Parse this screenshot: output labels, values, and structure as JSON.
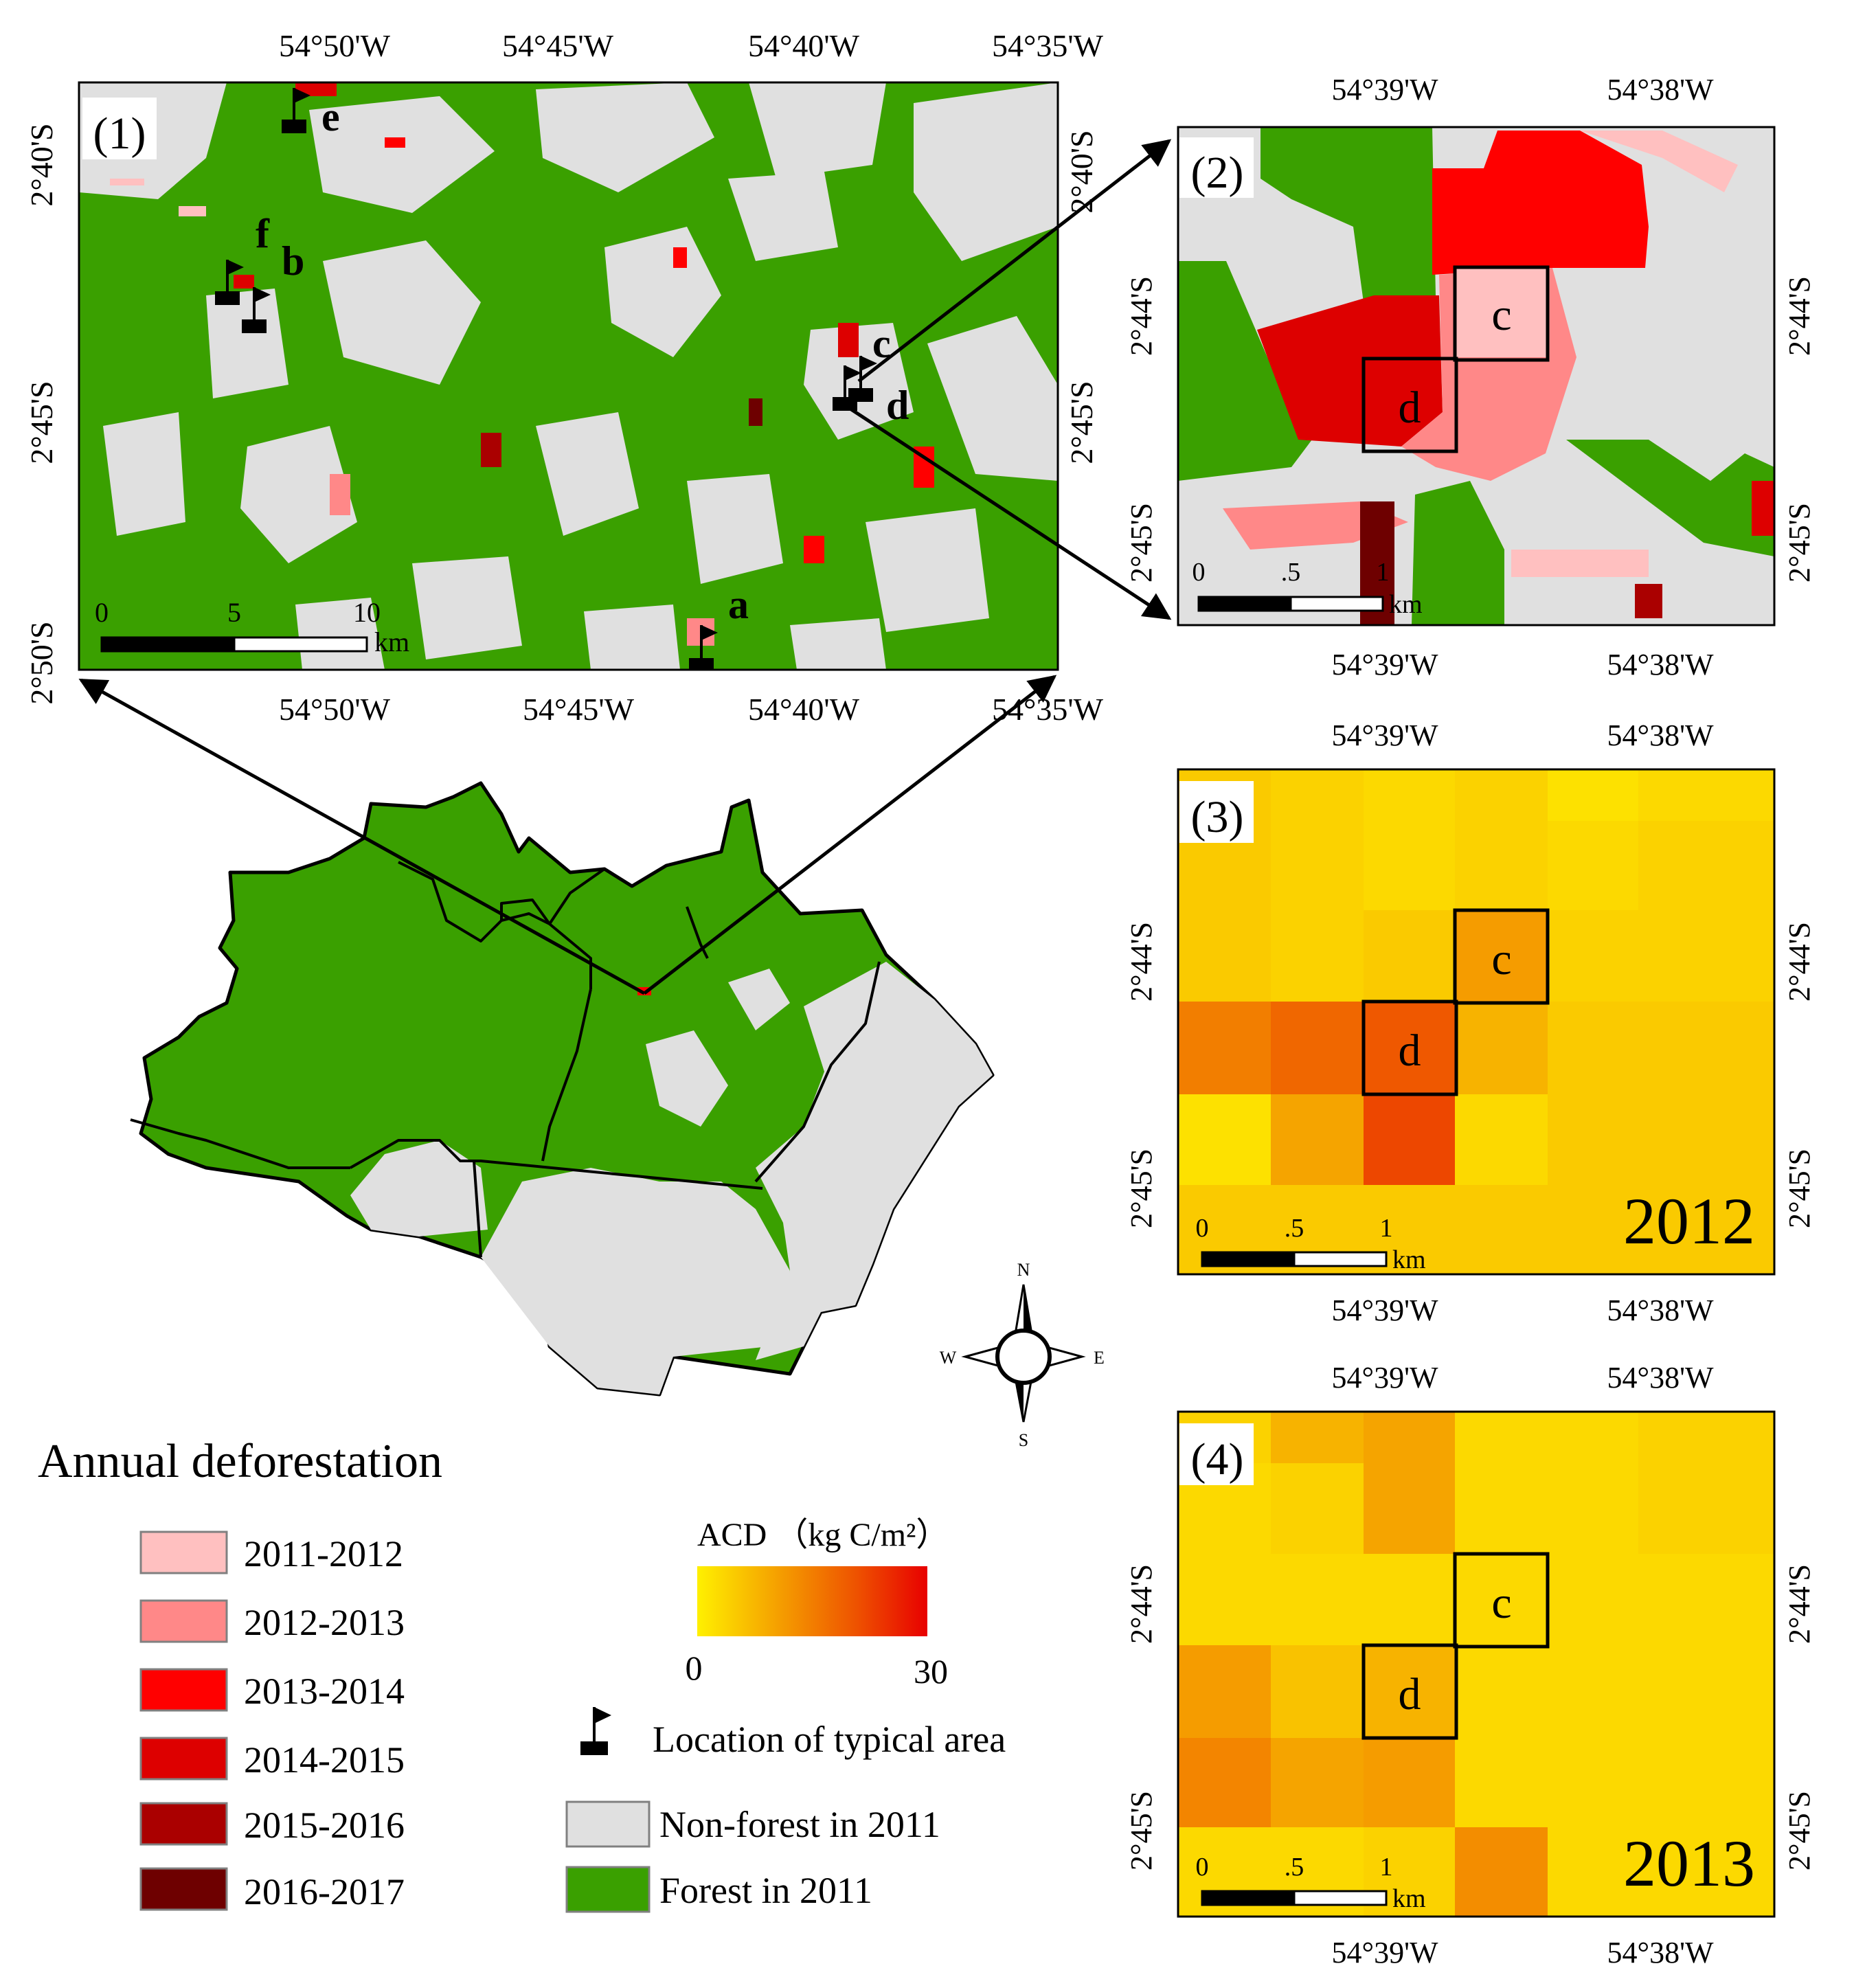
{
  "panels": {
    "p1": {
      "label": "(1)",
      "lon_ticks": [
        "54°50'W",
        "54°45'W",
        "54°40'W",
        "54°35'W"
      ],
      "lat_ticks": [
        "2°40'S",
        "2°45'S",
        "2°50'S"
      ],
      "scalebar": {
        "ticks": [
          "0",
          "5",
          "10"
        ],
        "unit": "km"
      },
      "sites": [
        "a",
        "b",
        "c",
        "d",
        "e",
        "f"
      ]
    },
    "p2": {
      "label": "(2)",
      "lon_ticks": [
        "54°39'W",
        "54°38'W"
      ],
      "lat_ticks": [
        "2°44'S",
        "2°45'S"
      ],
      "scalebar": {
        "ticks": [
          "0",
          ".5",
          "1"
        ],
        "unit": "km"
      },
      "boxes": [
        "c",
        "d"
      ]
    },
    "p3": {
      "label": "(3)",
      "year": "2012",
      "lon_ticks": [
        "54°39'W",
        "54°38'W"
      ],
      "lat_ticks": [
        "2°44'S",
        "2°45'S"
      ],
      "scalebar": {
        "ticks": [
          "0",
          ".5",
          "1"
        ],
        "unit": "km"
      },
      "boxes": [
        "c",
        "d"
      ],
      "acd_grid": [
        [
          5,
          4,
          3,
          4,
          2,
          3
        ],
        [
          5,
          4,
          3,
          4,
          3,
          4
        ],
        [
          5,
          4,
          5,
          11,
          4,
          4
        ],
        [
          15,
          18,
          20,
          8,
          5,
          5
        ],
        [
          2,
          10,
          22,
          3,
          5,
          5
        ],
        [
          5,
          5,
          5,
          5,
          5,
          5
        ]
      ]
    },
    "p4": {
      "label": "(4)",
      "year": "2013",
      "lon_ticks": [
        "54°39'W",
        "54°38'W"
      ],
      "lat_ticks": [
        "2°44'S",
        "2°45'S"
      ],
      "scalebar": {
        "ticks": [
          "0",
          ".5",
          "1"
        ],
        "unit": "km"
      },
      "boxes": [
        "c",
        "d"
      ],
      "acd_grid": [
        [
          4,
          8,
          10,
          3,
          3,
          4
        ],
        [
          3,
          4,
          10,
          3,
          3,
          4
        ],
        [
          3,
          3,
          3,
          3,
          3,
          3
        ],
        [
          11,
          6,
          8,
          3,
          3,
          3
        ],
        [
          14,
          10,
          11,
          3,
          3,
          3
        ],
        [
          3,
          3,
          4,
          13,
          3,
          3
        ]
      ]
    }
  },
  "compass": {
    "n": "N",
    "s": "S",
    "e": "E",
    "w": "W"
  },
  "legend": {
    "title": "Annual deforestation",
    "periods": [
      {
        "label": "2011-2012",
        "color": "#FFC0C0"
      },
      {
        "label": "2012-2013",
        "color": "#FF8888"
      },
      {
        "label": "2013-2014",
        "color": "#FF0000"
      },
      {
        "label": "2014-2015",
        "color": "#DD0000"
      },
      {
        "label": "2015-2016",
        "color": "#AA0000"
      },
      {
        "label": "2016-2017",
        "color": "#6E0000"
      }
    ],
    "acd": {
      "title": "ACD （kg C/m²）",
      "min": "0",
      "max": "30",
      "colors": [
        "#FFF000",
        "#F5A000",
        "#EE5000",
        "#E80000"
      ]
    },
    "location": "Location of typical area",
    "nonforest": {
      "label": "Non-forest in 2011",
      "color": "#E0E0E0"
    },
    "forest": {
      "label": "Forest in 2011",
      "color": "#3AA000"
    }
  }
}
